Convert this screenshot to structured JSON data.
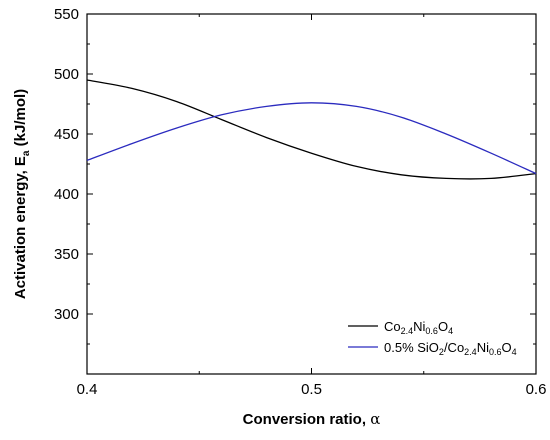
{
  "chart_data": {
    "type": "line",
    "xlabel_html": "Conversion ratio, <tspan font-family=\"DejaVu Serif, serif\" font-weight=\"normal\">α</tspan>",
    "xlabel": "Conversion ratio, α",
    "ylabel": "Activation energy, Ea (kJ/mol)",
    "xlim": [
      0.4,
      0.6
    ],
    "ylim": [
      250,
      550
    ],
    "xticks": [
      0.4,
      0.5,
      0.6
    ],
    "yticks": [
      300,
      350,
      400,
      450,
      500,
      550
    ],
    "grid": false,
    "legend_position": "bottom-right",
    "series": [
      {
        "name": "Co2.4Ni0.6O4",
        "color": "#000000",
        "x": [
          0.4,
          0.42,
          0.44,
          0.46,
          0.48,
          0.5,
          0.52,
          0.54,
          0.56,
          0.58,
          0.6
        ],
        "y": [
          495,
          488,
          477,
          462,
          447,
          434,
          423,
          416,
          413,
          413,
          417
        ]
      },
      {
        "name": "0.5% SiO2/Co2.4Ni0.6O4",
        "color": "#2b2bbf",
        "x": [
          0.4,
          0.42,
          0.44,
          0.46,
          0.48,
          0.5,
          0.52,
          0.54,
          0.56,
          0.58,
          0.6
        ],
        "y": [
          428,
          442,
          455,
          466,
          473,
          476,
          473,
          464,
          450,
          434,
          417
        ]
      }
    ]
  }
}
